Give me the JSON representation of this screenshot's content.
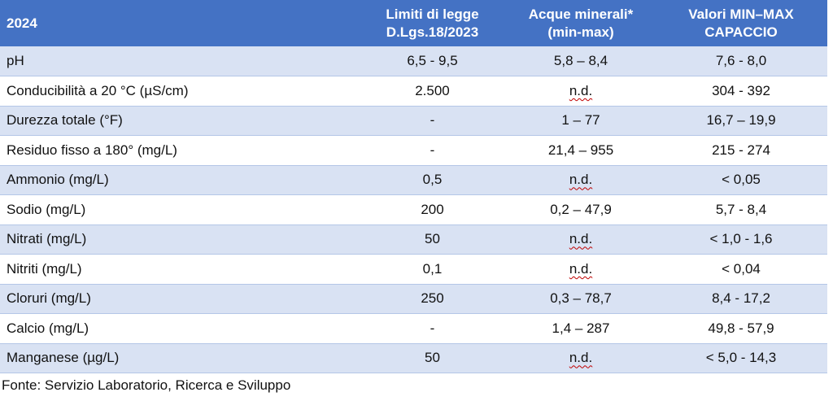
{
  "table": {
    "header": [
      [
        "2024"
      ],
      [
        "Limiti di legge",
        "D.Lgs.18/2023"
      ],
      [
        "Acque minerali*",
        "(min-max)"
      ],
      [
        "Valori MIN–MAX",
        "CAPACCIO"
      ]
    ],
    "rows": [
      [
        "pH",
        "6,5 - 9,5",
        "5,8 – 8,4",
        "7,6 - 8,0"
      ],
      [
        "Conducibilità a 20 °C (µS/cm)",
        "2.500",
        "n.d.",
        "304 - 392"
      ],
      [
        "Durezza totale (°F)",
        "-",
        "1 – 77",
        "16,7 – 19,9"
      ],
      [
        "Residuo fisso a 180° (mg/L)",
        "-",
        "21,4 – 955",
        "215 - 274"
      ],
      [
        "Ammonio (mg/L)",
        "0,5",
        "n.d.",
        "< 0,05"
      ],
      [
        "Sodio (mg/L)",
        "200",
        "0,2 – 47,9",
        "5,7 - 8,4"
      ],
      [
        "Nitrati (mg/L)",
        "50",
        "n.d.",
        "< 1,0 - 1,6"
      ],
      [
        "Nitriti (mg/L)",
        "0,1",
        "n.d.",
        "< 0,04"
      ],
      [
        "Cloruri (mg/L)",
        "250",
        "0,3 – 78,7",
        "8,4 - 17,2"
      ],
      [
        "Calcio (mg/L)",
        "-",
        "1,4 – 287",
        "49,8 - 57,9"
      ],
      [
        "Manganese (µg/L)",
        "50",
        "n.d.",
        "< 5,0 - 14,3"
      ]
    ]
  },
  "footer": {
    "source": "Fonte: Servizio Laboratorio, Ricerca e Sviluppo"
  }
}
